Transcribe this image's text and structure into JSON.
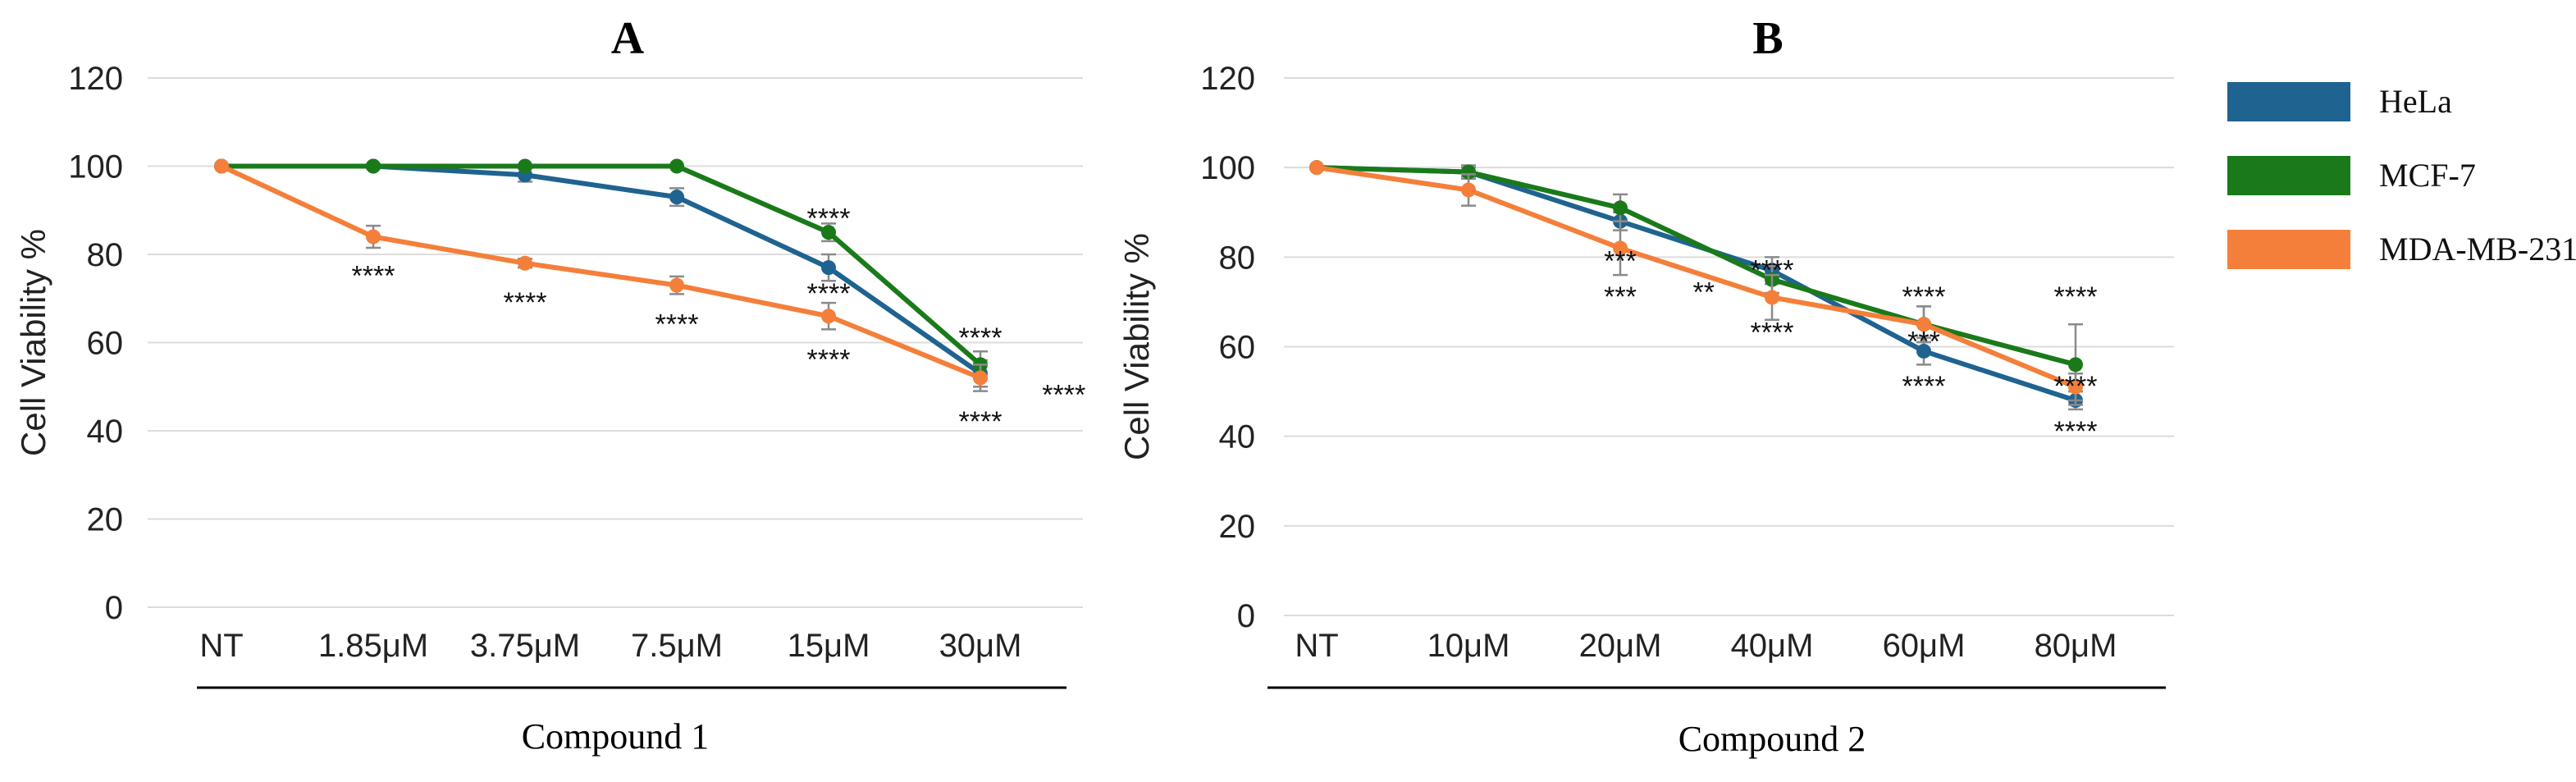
{
  "colors": {
    "HeLa": "#1f6390",
    "MCF-7": "#1a7a1a",
    "MDA-MB-231": "#f47f3a",
    "axis": "#000000",
    "grid": "#dcdcdc"
  },
  "legend": {
    "placement": "right",
    "items": [
      {
        "label": "HeLa",
        "color": "#1f6390"
      },
      {
        "label": "MCF-7",
        "color": "#1a7a1a"
      },
      {
        "label": "MDA-MB-231",
        "color": "#f47f3a"
      }
    ]
  },
  "chart_data": [
    {
      "type": "line",
      "title": "A",
      "xlabel": "Compound 1",
      "ylabel": "Cell Viability %",
      "ylim": [
        0,
        120
      ],
      "yticks": [
        0,
        20,
        40,
        60,
        80,
        100,
        120
      ],
      "grid": true,
      "categories": [
        "NT",
        "1.85μM",
        "3.75μM",
        "7.5μM",
        "15μM",
        "30μM"
      ],
      "series": [
        {
          "name": "HeLa",
          "values": [
            100,
            100,
            98,
            93,
            77,
            53
          ],
          "errors": [
            0,
            0.5,
            1.5,
            2,
            3,
            3
          ]
        },
        {
          "name": "MCF-7",
          "values": [
            100,
            100,
            100,
            100,
            85,
            55
          ],
          "errors": [
            0,
            0,
            0,
            0,
            2,
            3
          ]
        },
        {
          "name": "MDA-MB-231",
          "values": [
            100,
            84,
            78,
            73,
            66,
            52
          ],
          "errors": [
            0,
            2.5,
            1,
            2,
            3,
            3
          ]
        }
      ],
      "annotations": [
        {
          "category": "1.85μM",
          "y": 76,
          "text": "****"
        },
        {
          "category": "3.75μM",
          "y": 70,
          "text": "****"
        },
        {
          "category": "7.5μM",
          "y": 65,
          "text": "****"
        },
        {
          "category": "15μM",
          "y": 89,
          "text": "****"
        },
        {
          "category": "15μM",
          "y": 72,
          "text": "****"
        },
        {
          "category": "15μM",
          "y": 57,
          "text": "****"
        },
        {
          "category": "30μM",
          "y": 62,
          "text": "****"
        },
        {
          "category": "30μM",
          "y": 43,
          "text": "****"
        },
        {
          "category": "30μM",
          "y": 49,
          "text": "****",
          "dx": 0.55
        }
      ]
    },
    {
      "type": "line",
      "title": "B",
      "xlabel": "Compound 2",
      "ylabel": "Cell Viability %",
      "ylim": [
        0,
        120
      ],
      "yticks": [
        0,
        20,
        40,
        60,
        80,
        100,
        120
      ],
      "grid": true,
      "categories": [
        "NT",
        "10μM",
        "20μM",
        "40μM",
        "60μM",
        "80μM"
      ],
      "series": [
        {
          "name": "HeLa",
          "values": [
            100,
            99,
            88,
            77,
            59,
            48
          ],
          "errors": [
            0,
            1,
            2,
            3,
            3,
            2
          ]
        },
        {
          "name": "MCF-7",
          "values": [
            100,
            99,
            91,
            75,
            65,
            56
          ],
          "errors": [
            0,
            1.5,
            3,
            3,
            4,
            9
          ]
        },
        {
          "name": "MDA-MB-231",
          "values": [
            100,
            95,
            82,
            71,
            65,
            51
          ],
          "errors": [
            0,
            3.5,
            6,
            5,
            4,
            3
          ]
        }
      ],
      "annotations": [
        {
          "category": "20μM",
          "y": 80,
          "text": "***"
        },
        {
          "category": "20μM",
          "y": 72,
          "text": "***"
        },
        {
          "category": "40μM",
          "y": 78,
          "text": "****"
        },
        {
          "category": "40μM",
          "y": 73,
          "text": "**",
          "dx": -0.45
        },
        {
          "category": "40μM",
          "y": 64,
          "text": "****"
        },
        {
          "category": "60μM",
          "y": 72,
          "text": "****"
        },
        {
          "category": "60μM",
          "y": 62,
          "text": "***"
        },
        {
          "category": "60μM",
          "y": 52,
          "text": "****"
        },
        {
          "category": "80μM",
          "y": 72,
          "text": "****"
        },
        {
          "category": "80μM",
          "y": 52,
          "text": "****"
        },
        {
          "category": "80μM",
          "y": 42,
          "text": "****"
        }
      ]
    }
  ]
}
